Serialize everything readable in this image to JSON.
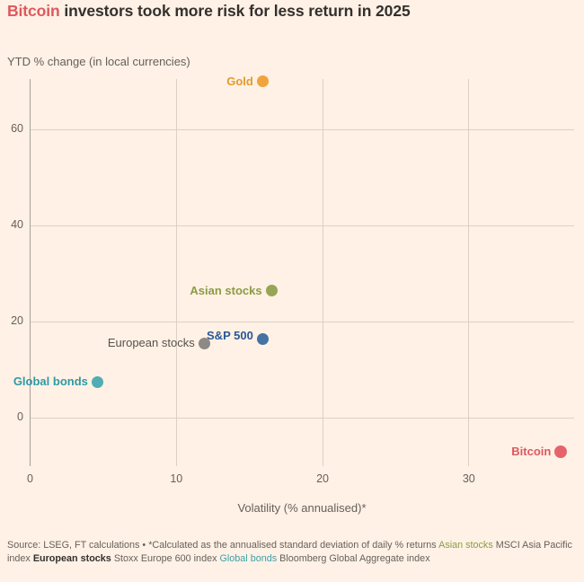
{
  "title": {
    "highlight": "Bitcoin",
    "rest": " investors took more risk for less return in 2025",
    "highlight_color": "#e0575d",
    "text_color": "#33302e"
  },
  "chart_data": {
    "type": "scatter",
    "title": "Bitcoin investors took more risk for less return in 2025",
    "ylabel": "YTD % change (in local currencies)",
    "xlabel": "Volatility (% annualised)*",
    "xlim": [
      0,
      37.2
    ],
    "ylim": [
      -10,
      70.5
    ],
    "x_ticks": [
      0,
      10,
      20,
      30
    ],
    "y_ticks": [
      0,
      20,
      40,
      60
    ],
    "grid": true,
    "legend_position": "labels-beside-points",
    "points": [
      {
        "name": "Gold",
        "x": 15.9,
        "y": 70,
        "color": "#f0a43c",
        "label_color": "#e39b2d"
      },
      {
        "name": "Asian stocks",
        "x": 16.5,
        "y": 26.5,
        "color": "#97a556",
        "label_color": "#8a9c44"
      },
      {
        "name": "S&P 500",
        "x": 15.9,
        "y": 16.5,
        "color": "#4472a4",
        "label_color": "#2a5796",
        "label_dy": -3
      },
      {
        "name": "European stocks",
        "x": 11.9,
        "y": 15.5,
        "color": "#8d8984",
        "label_color": "#56524e",
        "label_bold": false
      },
      {
        "name": "Global bonds",
        "x": 4.6,
        "y": 7.5,
        "color": "#4fadb3",
        "label_color": "#2d9aa4"
      },
      {
        "name": "Bitcoin",
        "x": 36.3,
        "y": -7,
        "color": "#e5646b",
        "label_color": "#dd5860",
        "r": 7
      }
    ]
  },
  "footer": {
    "segments": [
      {
        "name": "source-text",
        "text": "Source: LSEG, FT calculations • *Calculated as the annualised standard deviation of daily % returns "
      },
      {
        "name": "footer-asian-stocks-key",
        "text": "Asian stocks",
        "color": "#8a9c44"
      },
      {
        "name": "source-text",
        "text": " MSCI Asia Pacific index "
      },
      {
        "name": "footer-european-stocks-key",
        "text": "European stocks",
        "color": "#33302e",
        "bold": true
      },
      {
        "name": "source-text",
        "text": " Stoxx Europe 600 index "
      },
      {
        "name": "footer-global-bonds-key",
        "text": "Global bonds",
        "color": "#3da0a8"
      },
      {
        "name": "source-text",
        "text": " Bloomberg Global Aggregate index"
      }
    ]
  }
}
